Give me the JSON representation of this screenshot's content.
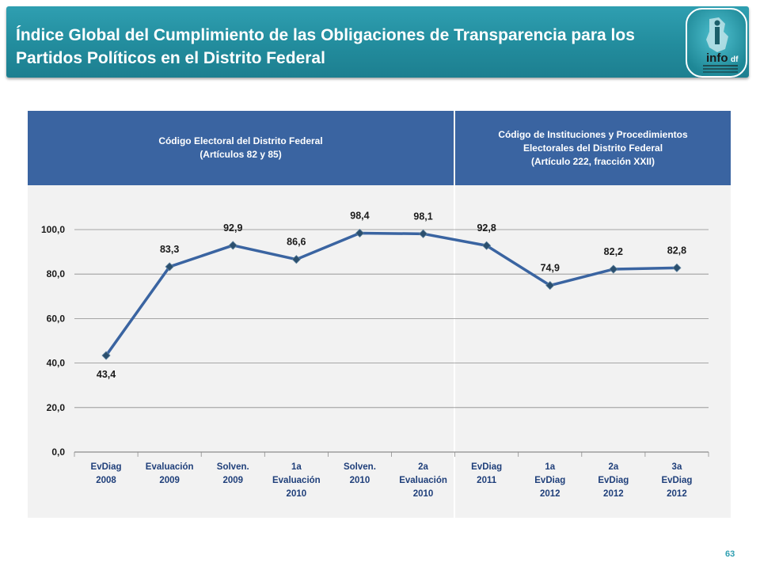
{
  "title": {
    "line1": "Índice Global del Cumplimiento de las Obligaciones de Transparencia para los",
    "line2": "Partidos Políticos en el Distrito Federal"
  },
  "logo": {
    "text": "info",
    "suffix": "df"
  },
  "panels": {
    "left": {
      "line1": "Código Electoral del Distrito Federal",
      "line2": "(Artículos 82 y 85)"
    },
    "right": {
      "line1": "Código de Instituciones y Procedimientos",
      "line2": "Electorales del Distrito Federal",
      "line3": "(Artículo 222, fracción XXII)"
    }
  },
  "page_number": "63",
  "colors": {
    "title_bar": "#2f9fb1",
    "panel_header": "#3a64a1",
    "line": "#3a64a1",
    "marker": "#2b4f6e",
    "chart_bg": "#f2f2f2"
  },
  "chart_data": {
    "type": "line",
    "title": "",
    "xlabel": "",
    "ylabel": "",
    "ylim": [
      0,
      100
    ],
    "yticks": [
      "0,0",
      "20,0",
      "40,0",
      "60,0",
      "80,0",
      "100,0"
    ],
    "grid": true,
    "categories": [
      [
        "EvDiag",
        "2008"
      ],
      [
        "Evaluación",
        "2009"
      ],
      [
        "Solven.",
        "2009"
      ],
      [
        "1a",
        "Evaluación",
        "2010"
      ],
      [
        "Solven.",
        "2010"
      ],
      [
        "2a",
        "Evaluación",
        "2010"
      ],
      [
        "EvDiag",
        "2011"
      ],
      [
        "1a",
        "EvDiag",
        "2012"
      ],
      [
        "2a",
        "EvDiag",
        "2012"
      ],
      [
        "3a",
        "EvDiag",
        "2012"
      ]
    ],
    "values": [
      43.4,
      83.3,
      92.9,
      86.6,
      98.4,
      98.1,
      92.8,
      74.9,
      82.2,
      82.8
    ],
    "value_labels": [
      "43,4",
      "83,3",
      "92,9",
      "86,6",
      "98,4",
      "98,1",
      "92,8",
      "74,9",
      "82,2",
      "82,8"
    ],
    "label_position": [
      "below",
      "above",
      "above",
      "above",
      "above",
      "above",
      "above",
      "above",
      "above",
      "above"
    ]
  }
}
